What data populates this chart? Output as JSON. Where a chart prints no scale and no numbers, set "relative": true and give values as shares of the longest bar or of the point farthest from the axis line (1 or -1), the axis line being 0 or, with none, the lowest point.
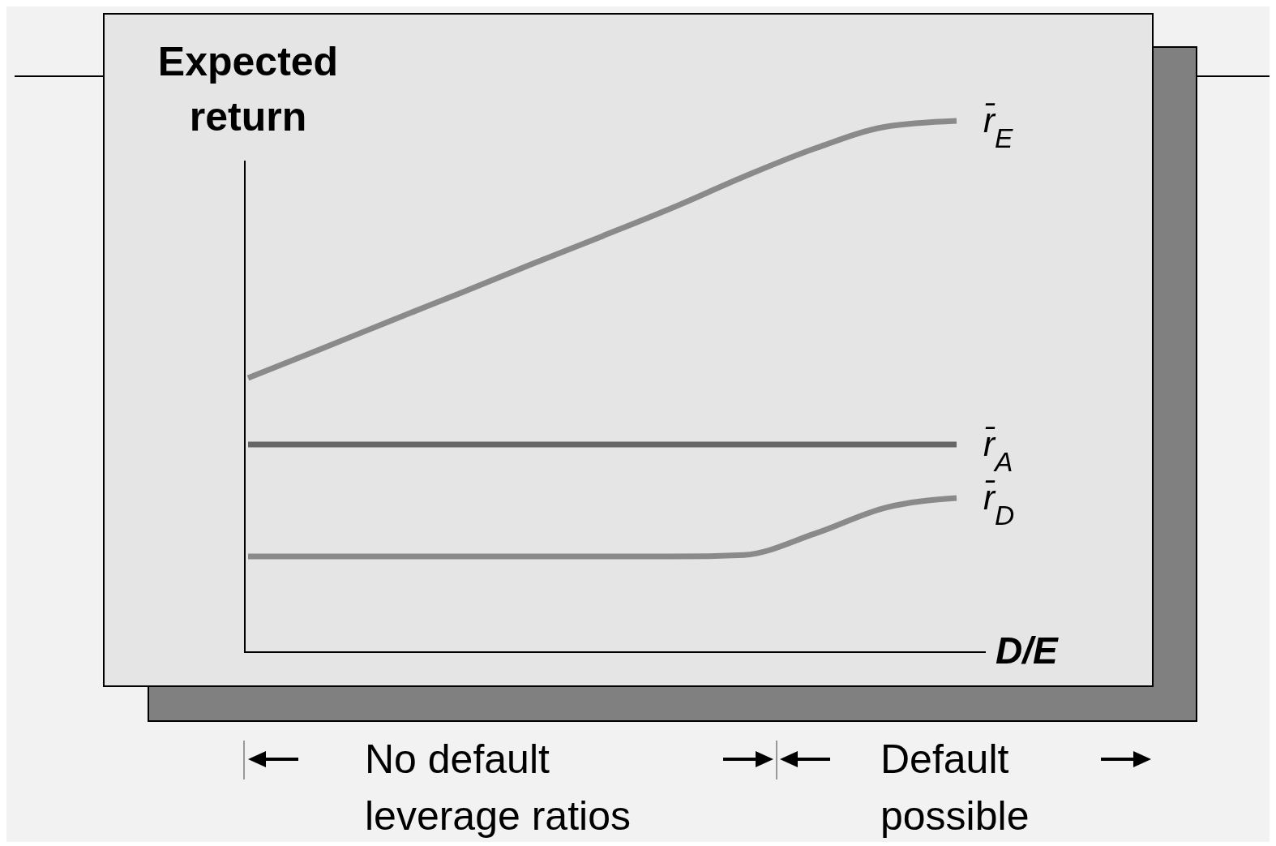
{
  "chart_data": {
    "type": "line",
    "relative": true,
    "ylabel": "Expected return",
    "xlabel": "D/E",
    "legend": false,
    "categories": [
      null,
      null,
      null,
      null,
      null,
      null,
      null,
      null,
      null,
      null,
      null
    ],
    "series": [
      {
        "name": "r̄$_{E}$",
        "color": "#8a8a8a",
        "values": [
          0.516,
          0.569,
          0.623,
          0.676,
          0.73,
          0.783,
          0.837,
          0.895,
          0.948,
          0.989,
          1
        ]
      },
      {
        "name": "r̄$_{A}$",
        "color": "#666666",
        "values": [
          0.391,
          0.391,
          0.391,
          0.391,
          0.391,
          0.391,
          0.391,
          0.391,
          0.391,
          0.391,
          0.391
        ]
      },
      {
        "name": "r̄$_{D}$",
        "color": "#8a8a8a",
        "values": [
          0.18,
          0.18,
          0.18,
          0.18,
          0.18,
          0.18,
          0.18,
          0.183,
          0.223,
          0.272,
          0.29
        ]
      }
    ],
    "annotations": [
      "No default\nleverage ratios",
      "Default\npossible"
    ]
  }
}
